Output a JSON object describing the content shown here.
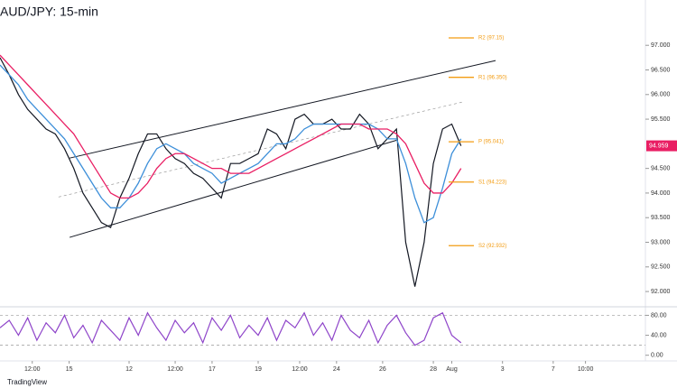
{
  "chart_data": [
    {
      "type": "line",
      "title": "AUD/JPY: 15-min",
      "x": [
        0,
        2,
        4,
        6,
        8,
        10,
        12,
        14,
        16,
        18,
        20,
        22,
        24,
        26,
        28,
        30,
        32,
        34,
        36,
        38,
        40,
        42,
        44,
        46,
        48,
        50,
        52,
        54,
        56,
        58,
        60,
        62,
        64,
        66,
        68,
        70,
        72,
        74,
        76,
        78,
        80,
        82,
        84,
        86,
        88,
        90,
        92,
        94,
        96,
        98,
        100
      ],
      "xlim": [
        0,
        140
      ],
      "ylim": [
        91.69,
        97.92
      ],
      "yticks": [
        {
          "value": 92,
          "label": "92.000"
        },
        {
          "value": 92.5,
          "label": "92.500"
        },
        {
          "value": 93,
          "label": "93.000"
        },
        {
          "value": 93.5,
          "label": "93.500"
        },
        {
          "value": 94,
          "label": "94.000"
        },
        {
          "value": 94.5,
          "label": "94.500"
        },
        {
          "value": 95.5,
          "label": "95.500"
        },
        {
          "value": 96,
          "label": "96.000"
        },
        {
          "value": 96.5,
          "label": "96.500"
        },
        {
          "value": 97,
          "label": "97.000"
        }
      ],
      "series": [
        {
          "color": "#131722",
          "values": [
            96.75,
            96.4,
            96.0,
            95.7,
            95.5,
            95.3,
            95.2,
            94.9,
            94.5,
            94.0,
            93.7,
            93.4,
            93.3,
            93.9,
            94.3,
            94.8,
            95.2,
            95.2,
            94.9,
            94.7,
            94.6,
            94.4,
            94.3,
            94.1,
            93.9,
            94.6,
            94.6,
            94.7,
            94.8,
            95.3,
            95.2,
            94.9,
            95.5,
            95.6,
            95.4,
            95.4,
            95.5,
            95.3,
            95.3,
            95.6,
            95.4,
            94.9,
            95.1,
            95.3,
            93.0,
            92.1,
            93.0,
            94.6,
            95.3,
            95.4,
            94.959
          ]
        },
        {
          "color": "#3d8fd9",
          "values": [
            96.6,
            96.4,
            96.2,
            95.9,
            95.7,
            95.5,
            95.3,
            95.1,
            94.8,
            94.5,
            94.2,
            93.9,
            93.7,
            93.7,
            93.9,
            94.2,
            94.6,
            94.9,
            95.0,
            94.9,
            94.8,
            94.6,
            94.5,
            94.4,
            94.2,
            94.3,
            94.4,
            94.5,
            94.6,
            94.8,
            95.0,
            95.0,
            95.1,
            95.3,
            95.4,
            95.4,
            95.4,
            95.4,
            95.4,
            95.4,
            95.4,
            95.3,
            95.1,
            95.1,
            94.6,
            93.9,
            93.4,
            93.5,
            94.1,
            94.8,
            95.1
          ]
        },
        {
          "color": "#e91e63",
          "values": [
            96.8,
            96.6,
            96.4,
            96.2,
            96.0,
            95.8,
            95.6,
            95.4,
            95.2,
            94.9,
            94.6,
            94.3,
            94.0,
            93.9,
            93.9,
            94.0,
            94.2,
            94.5,
            94.7,
            94.8,
            94.8,
            94.7,
            94.6,
            94.5,
            94.5,
            94.4,
            94.4,
            94.4,
            94.5,
            94.6,
            94.7,
            94.8,
            94.9,
            95.0,
            95.1,
            95.2,
            95.3,
            95.4,
            95.4,
            95.4,
            95.3,
            95.3,
            95.3,
            95.2,
            95.0,
            94.6,
            94.2,
            94.0,
            94.0,
            94.2,
            94.5
          ]
        }
      ],
      "trendlines": [
        {
          "x": [
            15.1,
            107.5
          ],
          "y": [
            94.71,
            96.69
          ],
          "dashed": false
        },
        {
          "x": [
            12.7,
            100.4
          ],
          "y": [
            93.92,
            95.85
          ],
          "dashed": true
        },
        {
          "x": [
            15.1,
            86.3
          ],
          "y": [
            93.1,
            95.08
          ],
          "dashed": false
        }
      ],
      "levels": [
        {
          "value": 97.15,
          "label": "R2 (97.15)"
        },
        {
          "value": 96.35,
          "label": "R1 (96.350)"
        },
        {
          "value": 95.041,
          "label": "P (95.041)"
        },
        {
          "value": 94.223,
          "label": "S1 (94.223)"
        },
        {
          "value": 92.932,
          "label": "S2 (92.932)"
        }
      ],
      "level_color": "#f39c12",
      "price_tag": {
        "value": 94.959,
        "label": "94.959",
        "color": "#e91e63"
      }
    },
    {
      "type": "line",
      "x": [
        0,
        2,
        4,
        6,
        8,
        10,
        12,
        14,
        16,
        18,
        20,
        22,
        24,
        26,
        28,
        30,
        32,
        34,
        36,
        38,
        40,
        42,
        44,
        46,
        48,
        50,
        52,
        54,
        56,
        58,
        60,
        62,
        64,
        66,
        68,
        70,
        72,
        74,
        76,
        78,
        80,
        82,
        84,
        86,
        88,
        90,
        92,
        94,
        96,
        98,
        100
      ],
      "xlim": [
        0,
        140
      ],
      "ylim": [
        -11.4,
        97.1
      ],
      "yticks": [
        {
          "value": 0,
          "label": "0.00"
        },
        {
          "value": 40,
          "label": "40.00"
        },
        {
          "value": 80,
          "label": "80.00"
        }
      ],
      "guides": [
        80,
        20
      ],
      "xticks": [
        {
          "value": 7,
          "label": "12:00"
        },
        15,
        {
          "value": 28,
          "label": "12"
        },
        {
          "value": 38,
          "label": "12:00"
        },
        {
          "value": 46,
          "label": "17"
        },
        {
          "value": 56,
          "label": "19"
        },
        {
          "value": 65,
          "label": "12:00"
        },
        {
          "value": 73,
          "label": "24"
        },
        {
          "value": 83,
          "label": "26"
        },
        {
          "value": 94,
          "label": "28"
        },
        {
          "value": 98,
          "label": "Aug"
        },
        {
          "value": 109,
          "label": "3"
        },
        {
          "value": 120,
          "label": "7"
        },
        {
          "value": 127,
          "label": "10:00"
        }
      ],
      "series": [
        {
          "color": "#8e44c9",
          "values": [
            55,
            70,
            40,
            75,
            30,
            65,
            45,
            80,
            35,
            60,
            25,
            70,
            50,
            30,
            75,
            40,
            85,
            55,
            30,
            70,
            45,
            65,
            25,
            75,
            50,
            80,
            35,
            60,
            40,
            75,
            30,
            70,
            55,
            85,
            40,
            65,
            30,
            80,
            50,
            35,
            70,
            25,
            60,
            80,
            45,
            20,
            30,
            75,
            85,
            40,
            25
          ]
        }
      ]
    }
  ],
  "logo": "TradingView"
}
